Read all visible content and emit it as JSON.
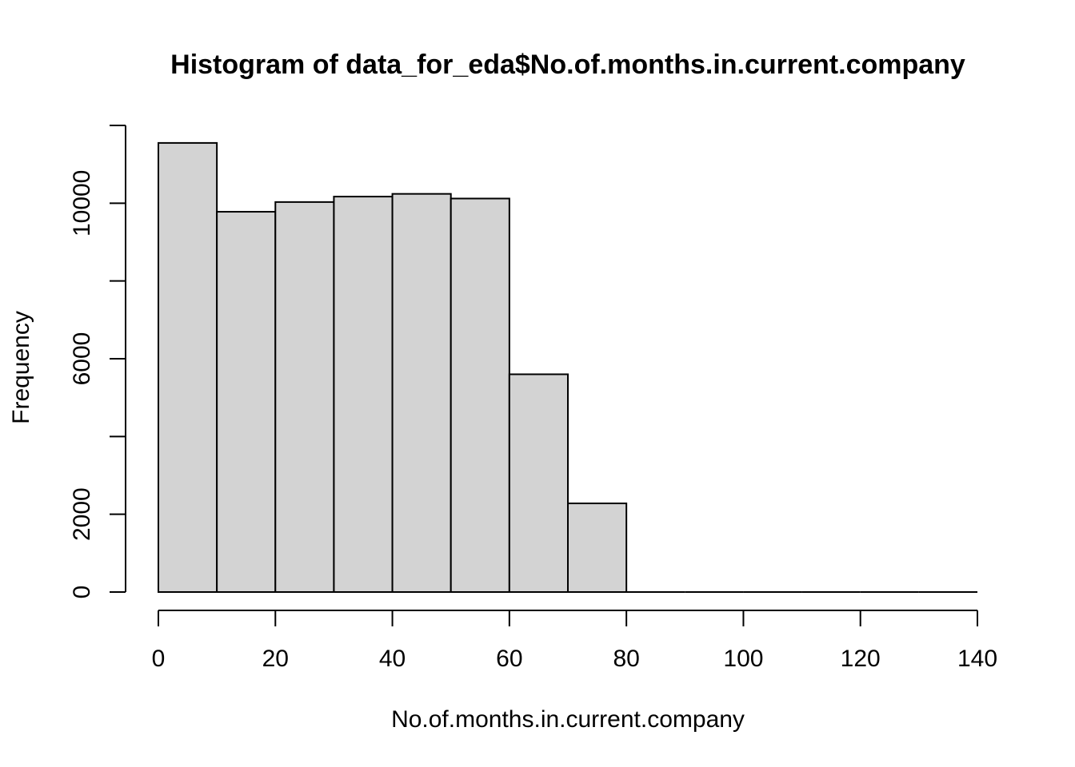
{
  "chart_data": {
    "type": "bar",
    "title": "Histogram of data_for_eda$No.of.months.in.current.company",
    "xlabel": "No.of.months.in.current.company",
    "ylabel": "Frequency",
    "bins": [
      {
        "from": 0,
        "to": 10,
        "count": 11550
      },
      {
        "from": 10,
        "to": 20,
        "count": 9780
      },
      {
        "from": 20,
        "to": 30,
        "count": 10030
      },
      {
        "from": 30,
        "to": 40,
        "count": 10170
      },
      {
        "from": 40,
        "to": 50,
        "count": 10240
      },
      {
        "from": 50,
        "to": 60,
        "count": 10120
      },
      {
        "from": 60,
        "to": 70,
        "count": 5600
      },
      {
        "from": 70,
        "to": 80,
        "count": 2280
      },
      {
        "from": 80,
        "to": 90,
        "count": 0
      },
      {
        "from": 90,
        "to": 100,
        "count": 0
      },
      {
        "from": 100,
        "to": 110,
        "count": 0
      },
      {
        "from": 110,
        "to": 120,
        "count": 0
      },
      {
        "from": 120,
        "to": 130,
        "count": 0
      },
      {
        "from": 130,
        "to": 140,
        "count": 0
      }
    ],
    "xlim": [
      0,
      140
    ],
    "ylim": [
      0,
      12000
    ],
    "x_ticks": [
      "0",
      "20",
      "40",
      "60",
      "80",
      "100",
      "120",
      "140"
    ],
    "y_ticks": [
      0,
      2000,
      4000,
      6000,
      8000,
      10000,
      12000
    ],
    "y_tick_labels": [
      "0",
      "2000",
      "",
      "6000",
      "",
      "10000",
      ""
    ],
    "colors": {
      "bar_fill": "#d3d3d3",
      "bar_stroke": "#000000"
    },
    "grid": false
  }
}
